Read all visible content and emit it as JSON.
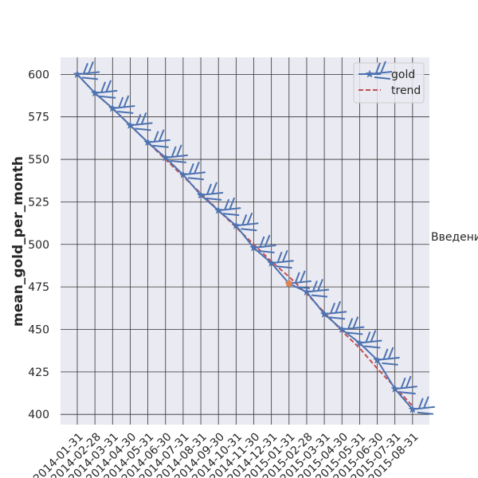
{
  "chart_data": {
    "type": "line",
    "title": "",
    "xlabel": "",
    "ylabel": "mean_gold_per_month",
    "ylim": [
      394,
      610
    ],
    "yticks": [
      400,
      425,
      450,
      475,
      500,
      525,
      550,
      575,
      600
    ],
    "grid": true,
    "legend_position": "top-right",
    "categories": [
      "2014-01-31",
      "2014-02-28",
      "2014-03-31",
      "2014-04-30",
      "2014-05-31",
      "2014-06-30",
      "2014-07-31",
      "2014-08-31",
      "2014-09-30",
      "2014-10-31",
      "2014-11-30",
      "2014-12-31",
      "2015-01-31",
      "2015-02-28",
      "2015-03-31",
      "2015-04-30",
      "2015-05-31",
      "2015-06-30",
      "2015-07-31",
      "2015-08-31"
    ],
    "series": [
      {
        "name": "gold",
        "color": "#4c72b0",
        "marker": "star-with-barbs",
        "values": [
          600,
          589,
          580,
          570,
          560,
          551,
          541,
          529,
          520,
          511,
          498,
          489,
          477,
          472,
          459,
          450,
          442,
          432,
          415,
          403
        ]
      },
      {
        "name": "trend",
        "color": "#c44e52",
        "style": "dashed",
        "values": [
          600,
          589,
          580,
          570,
          560,
          550,
          540,
          530,
          520,
          510,
          500,
          490,
          481,
          471,
          460,
          449,
          439,
          427,
          416,
          405
        ]
      }
    ],
    "highlight": {
      "category": "2015-01-31",
      "value": 477,
      "color": "#dd8452"
    },
    "annotation": "Введени"
  }
}
